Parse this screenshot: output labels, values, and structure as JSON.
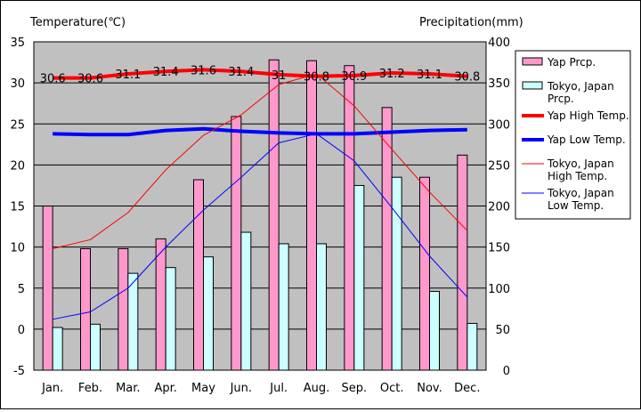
{
  "chart_data": {
    "type": "bar+line",
    "title": "",
    "y_left_label": "Temperature(℃)",
    "y_right_label": "Precipitation(mm)",
    "y_left_range": [
      -5,
      35
    ],
    "y_left_ticks": [
      "-5",
      "0",
      "5",
      "10",
      "15",
      "20",
      "25",
      "30",
      "35"
    ],
    "y_right_range": [
      0,
      400
    ],
    "y_right_ticks": [
      "0",
      "50",
      "100",
      "150",
      "200",
      "250",
      "300",
      "350",
      "400"
    ],
    "grid": "horizontal",
    "categories": [
      "Jan.",
      "Feb.",
      "Mar.",
      "Apr.",
      "May",
      "Jun.",
      "Jul.",
      "Aug.",
      "Sep.",
      "Oct.",
      "Nov.",
      "Dec."
    ],
    "bar_series": [
      {
        "name": "Yap Prcp.",
        "axis": "right",
        "color": "#ff99cc",
        "values": [
          200,
          148,
          148,
          160,
          232,
          309,
          378,
          377,
          371,
          320,
          235,
          262
        ]
      },
      {
        "name": "Tokyo, Japan Prcp.",
        "axis": "right",
        "color": "#ccffff",
        "values": [
          52,
          56,
          118,
          125,
          138,
          168,
          154,
          154,
          225,
          235,
          96,
          57
        ]
      }
    ],
    "line_series": [
      {
        "name": "Yap High Temp.",
        "axis": "left",
        "color": "#ff0000",
        "width": 4,
        "values": [
          30.6,
          30.6,
          31.1,
          31.4,
          31.6,
          31.4,
          31.0,
          30.8,
          30.9,
          31.2,
          31.1,
          30.8
        ],
        "labels": [
          "30.6",
          "30.6",
          "31.1",
          "31.4",
          "31.6",
          "31.4",
          "31",
          "30.8",
          "30.9",
          "31.2",
          "31.1",
          "30.8"
        ]
      },
      {
        "name": "Yap Low Temp.",
        "axis": "left",
        "color": "#0000ff",
        "width": 4,
        "values": [
          23.8,
          23.7,
          23.7,
          24.2,
          24.4,
          24.1,
          23.9,
          23.8,
          23.8,
          24.0,
          24.2,
          24.3
        ]
      },
      {
        "name": "Tokyo, Japan High Temp.",
        "axis": "left",
        "color": "#ff0000",
        "width": 1,
        "values": [
          9.8,
          10.9,
          14.2,
          19.4,
          23.6,
          26.1,
          29.8,
          31.1,
          27.2,
          21.9,
          16.7,
          12.0
        ]
      },
      {
        "name": "Tokyo, Japan Low Temp.",
        "axis": "left",
        "color": "#0000ff",
        "width": 1,
        "values": [
          1.2,
          2.1,
          5.0,
          10.0,
          14.5,
          18.5,
          22.7,
          23.8,
          20.5,
          14.8,
          8.9,
          3.9
        ]
      }
    ],
    "legend": {
      "position": "right",
      "entries": [
        {
          "kind": "bar",
          "color": "#ff99cc",
          "lines": [
            "Yap Prcp."
          ]
        },
        {
          "kind": "bar",
          "color": "#ccffff",
          "lines": [
            "Tokyo, Japan",
            "Prcp."
          ]
        },
        {
          "kind": "line",
          "color": "#ff0000",
          "width": 4,
          "lines": [
            "Yap High Temp."
          ]
        },
        {
          "kind": "line",
          "color": "#0000ff",
          "width": 4,
          "lines": [
            "Yap Low Temp."
          ]
        },
        {
          "kind": "line",
          "color": "#ff0000",
          "width": 1,
          "lines": [
            "Tokyo, Japan",
            "High Temp."
          ]
        },
        {
          "kind": "line",
          "color": "#0000ff",
          "width": 1,
          "lines": [
            "Tokyo, Japan",
            "Low Temp."
          ]
        }
      ]
    },
    "colors": {
      "plot_bg": "#c0c0c0",
      "grid": "#000000",
      "bar_border": "#000000"
    }
  }
}
